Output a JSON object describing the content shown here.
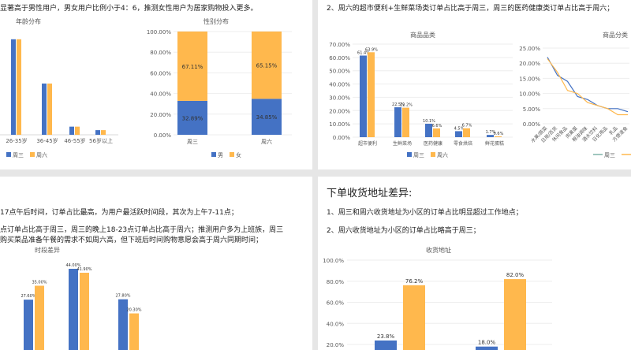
{
  "colors": {
    "blue": "#4472C4",
    "orange": "#FFB84D",
    "axis": "#d9d9d9",
    "text": "#595959"
  },
  "texts": {
    "tl_line1": "显著高于男性用户，男女用户比例小于4：6，推测女性用户为居家购物投入更多。",
    "tr_line1": "2、周六的超市便利+生鲜菜场类订单占比高于周三，周三的医药健康类订单占比高于周六；",
    "bl_line1": "17点午后时间，订单占比最高，为用户最活跃时间段，其次为上午7-11点；",
    "bl_line2": "点订单占比高于周三，周三的晚上18-23点订单占比高于周六；推测用户多为上班族，周三",
    "bl_line3": "购买菜品准备午餐的需求不如周六高，但下班后时间购物意愿会高于周六同期时间；",
    "br_heading": "下单收货地址差异:",
    "br_line1": "1、周三和周六收货地址为小区的订单占比明显超过工作地点；",
    "br_line2": "2、周六收货地址为小区的订单占比略高于周三；"
  },
  "chart_data": [
    {
      "id": "age",
      "type": "bar",
      "title": "年龄分布",
      "categories": [
        "",
        "26-35岁",
        "36-45岁",
        "46-55岁",
        "56岁以上"
      ],
      "series": [
        {
          "name": "周三",
          "values": [
            null,
            41,
            22,
            3.5,
            2
          ]
        },
        {
          "name": "周六",
          "values": [
            null,
            41,
            22,
            3.5,
            2
          ]
        }
      ],
      "legend": "bottom"
    },
    {
      "id": "gender",
      "type": "bar",
      "stacked": true,
      "title": "性别分布",
      "categories": [
        "周三",
        "周六"
      ],
      "series": [
        {
          "name": "男",
          "values": [
            32.89,
            34.85
          ]
        },
        {
          "name": "女",
          "values": [
            67.11,
            65.15
          ]
        }
      ],
      "data_labels": {
        "男": [
          "32.89%",
          "34.85%"
        ],
        "女": [
          "67.11%",
          "65.15%"
        ]
      },
      "y_ticks": [
        "0.00%",
        "20.00%",
        "40.00%",
        "60.00%",
        "80.00%",
        "100.00%"
      ],
      "ylim": [
        0,
        100
      ],
      "legend": "bottom"
    },
    {
      "id": "category",
      "type": "bar",
      "title": "商品品类",
      "categories": [
        "超市便利",
        "生鲜菜场",
        "医药健康",
        "零食烘焙",
        "鲜花蛋糕"
      ],
      "series": [
        {
          "name": "周三",
          "values": [
            61.4,
            22.5,
            10.1,
            4.5,
            1.7
          ]
        },
        {
          "name": "周六",
          "values": [
            63.9,
            22.2,
            6.6,
            6.7,
            0.6
          ]
        }
      ],
      "data_labels": {
        "周三": [
          "61.4%",
          "22.5%",
          "10.1%",
          "4.5%",
          "1.7%"
        ],
        "周六": [
          "63.9%",
          "22.2%",
          "6.6%",
          "6.7%",
          "0.6%"
        ]
      },
      "y_ticks": [
        "0.00%",
        "10.00%",
        "20.00%",
        "30.00%",
        "40.00%",
        "50.00%",
        "60.00%",
        "70.00%"
      ],
      "ylim": [
        0,
        70
      ],
      "legend": "bottom"
    },
    {
      "id": "category_detail",
      "type": "line",
      "title": "商品分类",
      "categories": [
        "水果/蔬菜",
        "日用/百货",
        "休闲食品",
        "肉禽蛋",
        "粮油调味",
        "酒水饮料",
        "日化用品",
        "乳品",
        "方便速食"
      ],
      "series": [
        {
          "name": "周三",
          "values": [
            22,
            16,
            14,
            9,
            8,
            6,
            5,
            5,
            4
          ]
        },
        {
          "name": "周六",
          "values": [
            21.5,
            17,
            11,
            10,
            7,
            6,
            5,
            3,
            3
          ]
        }
      ],
      "y_ticks": [
        "0.00%",
        "5.00%",
        "10.00%",
        "15.00%",
        "20.00%",
        "25.00%"
      ],
      "ylim": [
        0,
        25
      ],
      "legend": "bottom"
    },
    {
      "id": "time",
      "type": "bar",
      "title": "时段差异",
      "categories": [
        "",
        "",
        "",
        ""
      ],
      "series": [
        {
          "name": "周三",
          "values": [
            null,
            27.6,
            44.0,
            27.8
          ]
        },
        {
          "name": "周六",
          "values": [
            null,
            35.0,
            41.9,
            20.3
          ]
        }
      ],
      "data_labels": {
        "周三": [
          "",
          "27.60%",
          "44.00%",
          "27.80%"
        ],
        "周六": [
          "",
          "35.00%",
          "41.90%",
          "20.30%"
        ]
      },
      "ylim": [
        0,
        50
      ]
    },
    {
      "id": "address",
      "type": "bar",
      "title": "收货地址",
      "categories": [
        "",
        ""
      ],
      "series": [
        {
          "name": "周三",
          "values": [
            23.8,
            18.0
          ]
        },
        {
          "name": "周六",
          "values": [
            76.2,
            82.0
          ]
        }
      ],
      "data_labels": {
        "周三": [
          "23.8%",
          "18.0%"
        ],
        "周六": [
          "76.2%",
          "82.0%"
        ]
      },
      "y_ticks": [
        "20.0%",
        "40.0%",
        "60.0%",
        "80.0%",
        "100.0%"
      ],
      "ylim": [
        0,
        100
      ]
    }
  ]
}
